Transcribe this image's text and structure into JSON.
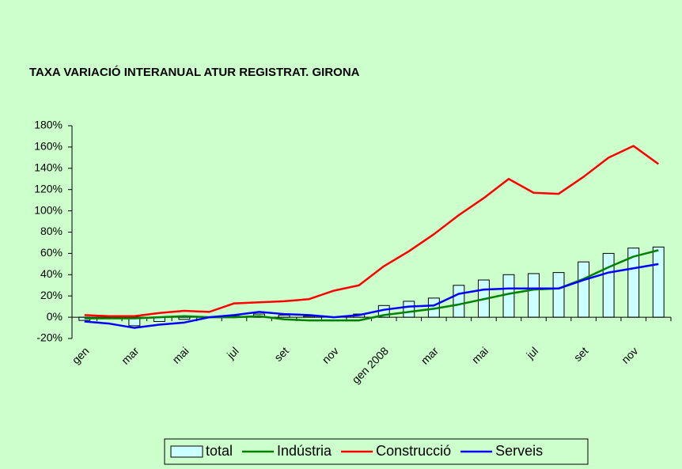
{
  "chart_data": {
    "type": "bar-line",
    "title": "TAXA VARIACIÓ INTERANUAL ATUR REGISTRAT. GIRONA",
    "categories": [
      "gen",
      null,
      "mar",
      null,
      "mai",
      null,
      "jul",
      null,
      "set",
      null,
      "nov",
      null,
      "gen 2008",
      null,
      "mar",
      null,
      "mai",
      null,
      "jul",
      null,
      "set",
      null,
      "nov",
      null
    ],
    "series": [
      {
        "name": "total",
        "type": "bar",
        "color": "#ccffff",
        "values": [
          -3,
          -1,
          -8,
          -4,
          -2,
          0,
          1,
          3,
          2,
          1,
          0,
          3,
          11,
          15,
          18,
          30,
          35,
          40,
          41,
          42,
          52,
          60,
          65,
          66
        ]
      },
      {
        "name": "Indústria",
        "type": "line",
        "color": "#008000",
        "values": [
          -1,
          -1,
          -1,
          0,
          1,
          0,
          0,
          1,
          -2,
          -3,
          -3,
          -3,
          2,
          5,
          8,
          12,
          17,
          22,
          26,
          27,
          36,
          47,
          57,
          63
        ]
      },
      {
        "name": "Construcció",
        "type": "line",
        "color": "#ff0000",
        "values": [
          2,
          1,
          1,
          4,
          6,
          5,
          13,
          14,
          15,
          17,
          25,
          30,
          48,
          62,
          78,
          96,
          112,
          130,
          117,
          116,
          132,
          150,
          161,
          144
        ]
      },
      {
        "name": "Serveis",
        "type": "line",
        "color": "#0000ff",
        "values": [
          -4,
          -6,
          -10,
          -7,
          -5,
          0,
          2,
          5,
          3,
          2,
          0,
          2,
          7,
          10,
          11,
          22,
          26,
          27,
          27,
          27,
          35,
          42,
          46,
          50
        ]
      }
    ],
    "ylim": [
      -20,
      180
    ],
    "yticks": [
      {
        "value": -20,
        "label": "-20%"
      },
      {
        "value": 0,
        "label": "0%"
      },
      {
        "value": 20,
        "label": "20%"
      },
      {
        "value": 40,
        "label": "40%"
      },
      {
        "value": 60,
        "label": "60%"
      },
      {
        "value": 80,
        "label": "80%"
      },
      {
        "value": 100,
        "label": "100%"
      },
      {
        "value": 120,
        "label": "120%"
      },
      {
        "value": 140,
        "label": "140%"
      },
      {
        "value": 160,
        "label": "160%"
      },
      {
        "value": 180,
        "label": "180%"
      }
    ],
    "legend": "bottom"
  }
}
